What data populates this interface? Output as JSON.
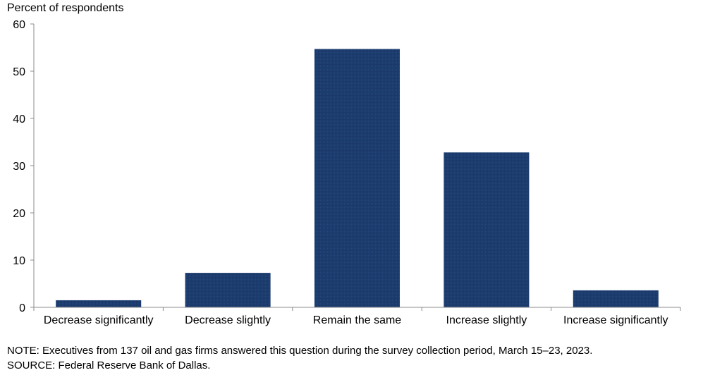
{
  "chart_data": {
    "type": "bar",
    "ylabel": "Percent of respondents",
    "categories": [
      "Decrease significantly",
      "Decrease slightly",
      "Remain the same",
      "Increase slightly",
      "Increase significantly"
    ],
    "values": [
      1.5,
      7.3,
      54.7,
      32.8,
      3.6
    ],
    "ylim": [
      0,
      60
    ],
    "yticks": [
      "0",
      "10",
      "20",
      "30",
      "40",
      "50",
      "60"
    ],
    "grid": false,
    "bar_color": "#1b3a6b"
  },
  "notes": {
    "note": "NOTE:  Executives  from  137  oil  and  gas  firms  answered  this  question  during  the  survey  collection  period,  March  15–23,  2023.",
    "source": "SOURCE:  Federal  Reserve  Bank  of  Dallas."
  }
}
